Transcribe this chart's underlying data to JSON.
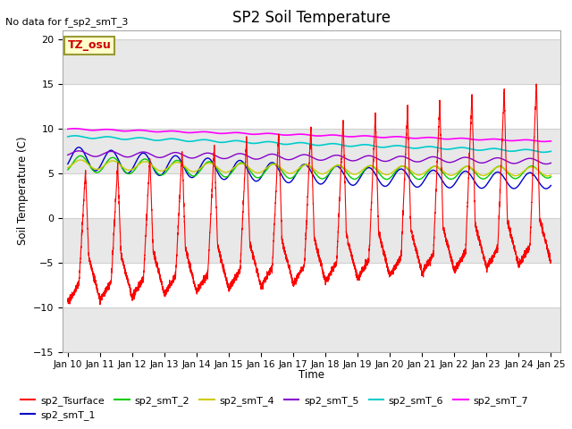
{
  "title": "SP2 Soil Temperature",
  "ylabel": "Soil Temperature (C)",
  "xlabel": "Time",
  "no_data_text": "No data for f_sp2_smT_3",
  "tz_label": "TZ_osu",
  "xlim_days": [
    9.85,
    25.3
  ],
  "ylim": [
    -15,
    21
  ],
  "yticks": [
    -15,
    -10,
    -5,
    0,
    5,
    10,
    15,
    20
  ],
  "xtick_positions": [
    10,
    11,
    12,
    13,
    14,
    15,
    16,
    17,
    18,
    19,
    20,
    21,
    22,
    23,
    24,
    25
  ],
  "xtick_labels": [
    "Jan 10",
    "Jan 11",
    "Jan 12",
    "Jan 13",
    "Jan 14",
    "Jan 15",
    "Jan 16",
    "Jan 17",
    "Jan 18",
    "Jan 19",
    "Jan 20",
    "Jan 21",
    "Jan 22",
    "Jan 23",
    "Jan 24",
    "Jan 25"
  ],
  "background_color": "#ffffff",
  "plot_bg_color": "#ffffff",
  "grid_color": "#d8d8d8",
  "series": [
    {
      "label": "sp2_Tsurface",
      "color": "#ff0000"
    },
    {
      "label": "sp2_smT_1",
      "color": "#0000cc"
    },
    {
      "label": "sp2_smT_2",
      "color": "#00cc00"
    },
    {
      "label": "sp2_smT_4",
      "color": "#cccc00"
    },
    {
      "label": "sp2_smT_5",
      "color": "#8800cc"
    },
    {
      "label": "sp2_smT_6",
      "color": "#00cccc"
    },
    {
      "label": "sp2_smT_7",
      "color": "#ff00ff"
    }
  ]
}
